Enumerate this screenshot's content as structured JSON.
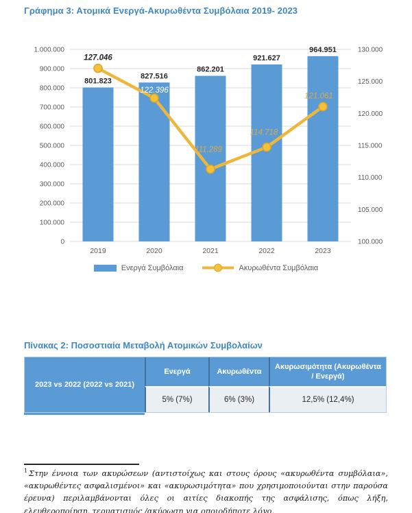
{
  "page": {
    "background": "#FFFFFF"
  },
  "chart_data": {
    "type": "combo-bar-line",
    "title": "Γράφημα 3: Ατομικά Ενεργά-Ακυρωθέντα Συμβόλαια 2019- 2023",
    "title_color": "#3E86C2",
    "categories": [
      "2019",
      "2020",
      "2021",
      "2022",
      "2023"
    ],
    "series": [
      {
        "name": "Ενεργά Συμβόλαια",
        "type": "bar",
        "axis": "left",
        "color": "#5B9BD5",
        "values": [
          801823,
          827516,
          862201,
          921627,
          964951
        ],
        "labels": [
          "801.823",
          "827.516",
          "862.201",
          "921.627",
          "964.951"
        ],
        "label_color": "#262626"
      },
      {
        "name": "Ακυρωθέντα Συμβόλαια",
        "type": "line",
        "axis": "right",
        "color": "#ECB73C",
        "marker_fill": "#F6C13A",
        "marker_stroke": "#DCA62A",
        "values": [
          127046,
          122396,
          111289,
          114718,
          121061
        ],
        "labels": [
          "127.046",
          "122.396",
          "111.289",
          "114.718",
          "121.061"
        ],
        "label_colors": [
          "#262626",
          "#FFFFFF",
          "#D9A94E",
          "#D9A94E",
          "#D9A94E"
        ]
      }
    ],
    "left_axis": {
      "min": 0,
      "max": 1000000,
      "step": 100000,
      "tick_labels": [
        "1.000.000",
        "900.000",
        "800.000",
        "700.000",
        "600.000",
        "500.000",
        "400.000",
        "300.000",
        "200.000",
        "100.000",
        "0"
      ]
    },
    "right_axis": {
      "min": 100000,
      "max": 130000,
      "step": 5000,
      "tick_labels": [
        "130.000",
        "125.000",
        "120.000",
        "115.000",
        "110.000",
        "105.000",
        "100.000"
      ]
    },
    "grid": true,
    "gridline_color": "#D9D9D9",
    "axis_text_color": "#595959",
    "legend_position": "bottom"
  },
  "table": {
    "title": "Πίνακας 2: Ποσοστιαία Μεταβολή Ατομικών Συμβολαίων",
    "title_color": "#3E86C2",
    "header_bg": "#5B9BD5",
    "row_bg": "#EAEFF4",
    "divider_color": "#41719C",
    "row_header": "2023 vs 2022 (2022 vs 2021)",
    "columns": [
      "Ενεργά",
      "Ακυρωθέντα",
      "Ακυρωσιμότητα (Ακυρωθέντα / Ενεργά)"
    ],
    "values": [
      "5% (7%)",
      "6% (3%)",
      "12,5% (12,4%)"
    ]
  },
  "footnote": {
    "marker": "1",
    "text": "Στην έννοια των ακυρώσεων (αντιστοίχως και στους όρους «ακυρωθέντα συμβόλαια», «ακυρωθέντες ασφαλισμένοι» και «ακυρωσιμότητα» που χρησιμοποιούνται στην παρούσα έρευνα) περιλαμβάνονται όλες οι αιτίες διακοπής της ασφάλισης, όπως λήξη, ελευθεροποίηση, τερματισμός /ακύρωση για οποιοδήποτε λόγο."
  }
}
